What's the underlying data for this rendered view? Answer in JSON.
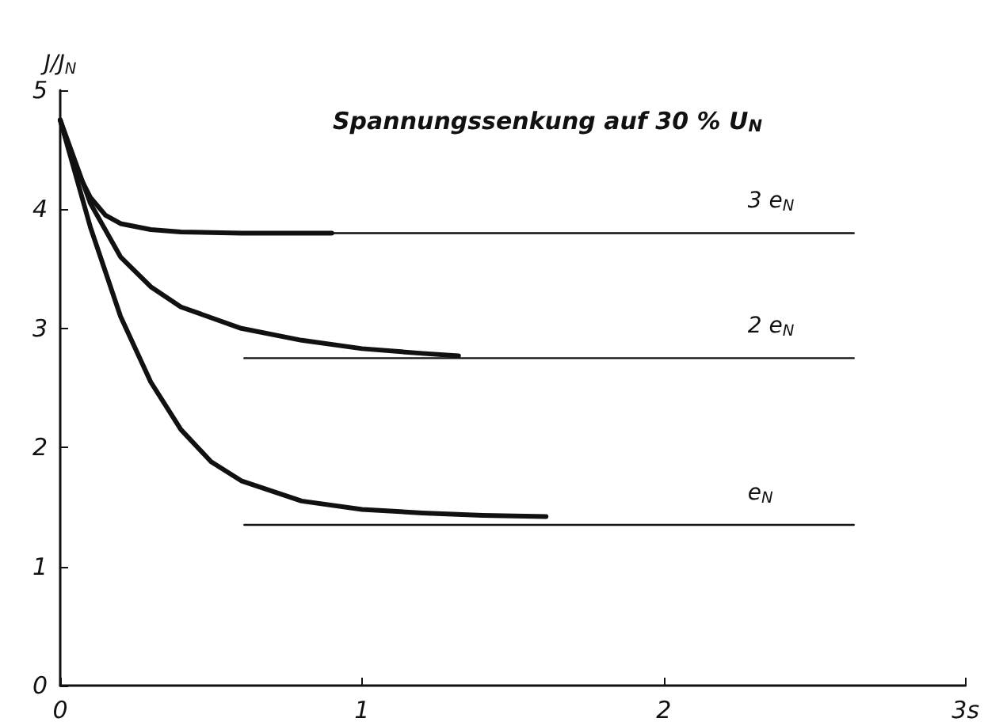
{
  "chart_data": {
    "type": "line",
    "title": "Spannungssenkung auf 30 % U$_{N}$",
    "ylabel": "J/J$_{N}$",
    "xlim": [
      0,
      3
    ],
    "ylim": [
      0,
      5
    ],
    "xticks": [
      0,
      1,
      2,
      {
        "value": 3,
        "label": "3s"
      }
    ],
    "yticks": [
      0,
      1,
      2,
      3,
      4,
      5
    ],
    "grid": false,
    "marker": "none",
    "line_style": "solid",
    "series": [
      {
        "color": "#111111",
        "x": [
          0,
          0.05,
          0.1,
          0.15,
          0.2,
          0.3,
          0.4,
          0.6,
          0.9
        ],
        "values": [
          4.75,
          4.35,
          4.1,
          3.95,
          3.88,
          3.83,
          3.81,
          3.8,
          3.8
        ]
      },
      {
        "color": "#111111",
        "x": [
          0,
          0.05,
          0.1,
          0.2,
          0.3,
          0.4,
          0.6,
          0.8,
          1.0,
          1.2,
          1.32
        ],
        "values": [
          4.75,
          4.4,
          4.05,
          3.6,
          3.35,
          3.18,
          3.0,
          2.9,
          2.83,
          2.79,
          2.77
        ]
      },
      {
        "color": "#111111",
        "x": [
          0,
          0.05,
          0.1,
          0.2,
          0.3,
          0.4,
          0.5,
          0.6,
          0.8,
          1.0,
          1.2,
          1.4,
          1.61
        ],
        "values": [
          4.75,
          4.3,
          3.85,
          3.1,
          2.55,
          2.15,
          1.88,
          1.72,
          1.55,
          1.48,
          1.45,
          1.43,
          1.42
        ]
      },
      {
        "name": "3 e$_{N}$",
        "color": "#111111",
        "x": [
          0.61,
          2.63
        ],
        "values": [
          3.8,
          3.8
        ]
      },
      {
        "name": "2 e$_{N}$",
        "color": "#111111",
        "x": [
          0.61,
          2.63
        ],
        "values": [
          2.75,
          2.75
        ]
      },
      {
        "name": "e$_{N}$",
        "color": "#111111",
        "x": [
          0.61,
          2.63
        ],
        "values": [
          1.35,
          1.35
        ]
      }
    ]
  }
}
